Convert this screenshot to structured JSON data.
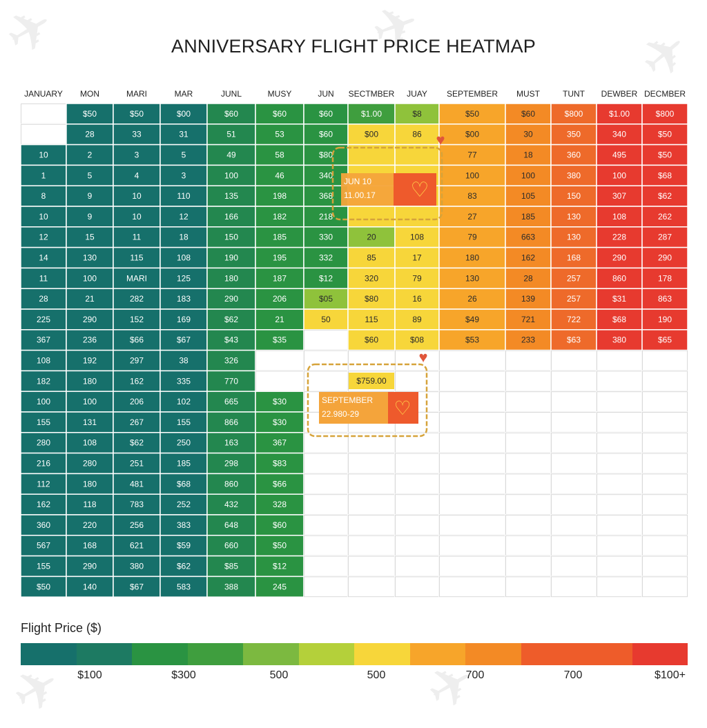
{
  "page": {
    "title": "ANNIVERSARY FLIGHT PRICE HEATMAP",
    "background_icon": "airplane-icon"
  },
  "chart_data": {
    "type": "heatmap",
    "title": "ANNIVERSARY FLIGHT PRICE HEATMAP",
    "columns": [
      "JANUARY",
      "MON",
      "MARI",
      "MAR",
      "JUNL",
      "MUSY",
      "JUN",
      "SECTMBER",
      "JUAY",
      "SEPTEMBER",
      "MUST",
      "TUNT",
      "DEWBER",
      "DECMBER"
    ],
    "rows": [
      [
        "",
        "$50",
        "$50",
        "$00",
        "$60",
        "$60",
        "$60",
        "$1.00",
        "$8",
        "$50",
        "$60",
        "$800",
        "$1.00",
        "$800"
      ],
      [
        "",
        "28",
        "33",
        "31",
        "51",
        "53",
        "$60",
        "$00",
        "86",
        "$00",
        "30",
        "350",
        "340",
        "$50"
      ],
      [
        "10",
        "2",
        "3",
        "5",
        "49",
        "58",
        "$80",
        "",
        "",
        "77",
        "18",
        "360",
        "495",
        "$50"
      ],
      [
        "1",
        "5",
        "4",
        "3",
        "100",
        "46",
        "340",
        "",
        "",
        "100",
        "100",
        "380",
        "100",
        "$68"
      ],
      [
        "8",
        "9",
        "10",
        "110",
        "135",
        "198",
        "368",
        "",
        "",
        "83",
        "105",
        "150",
        "307",
        "$62"
      ],
      [
        "10",
        "9",
        "10",
        "12",
        "166",
        "182",
        "218",
        "",
        "",
        "27",
        "185",
        "130",
        "108",
        "262"
      ],
      [
        "12",
        "15",
        "11",
        "18",
        "150",
        "185",
        "330",
        "20",
        "108",
        "79",
        "663",
        "130",
        "228",
        "287"
      ],
      [
        "14",
        "130",
        "115",
        "108",
        "190",
        "195",
        "332",
        "85",
        "17",
        "180",
        "162",
        "168",
        "290",
        "290"
      ],
      [
        "11",
        "100",
        "MARI",
        "125",
        "180",
        "187",
        "$12",
        "320",
        "79",
        "130",
        "28",
        "257",
        "860",
        "178"
      ],
      [
        "28",
        "21",
        "282",
        "183",
        "290",
        "206",
        "$05",
        "$80",
        "16",
        "26",
        "139",
        "257",
        "$31",
        "863"
      ],
      [
        "225",
        "290",
        "152",
        "169",
        "$62",
        "21",
        "50",
        "115",
        "89",
        "$49",
        "721",
        "722",
        "$68",
        "190"
      ],
      [
        "367",
        "236",
        "$66",
        "$67",
        "$43",
        "$35",
        "",
        "$60",
        "$08",
        "$53",
        "233",
        "$63",
        "380",
        "$65"
      ],
      [
        "108",
        "192",
        "297",
        "38",
        "326",
        "",
        "",
        "",
        "",
        "",
        "",
        "",
        "",
        ""
      ],
      [
        "182",
        "180",
        "162",
        "335",
        "770",
        "",
        "",
        "",
        "",
        "",
        "",
        "",
        "",
        ""
      ],
      [
        "100",
        "100",
        "206",
        "102",
        "665",
        "$30",
        "",
        "",
        "",
        "",
        "",
        "",
        "",
        ""
      ],
      [
        "155",
        "131",
        "267",
        "155",
        "866",
        "$30",
        "",
        "",
        "",
        "",
        "",
        "",
        "",
        ""
      ],
      [
        "280",
        "108",
        "$62",
        "250",
        "163",
        "367",
        "",
        "",
        "",
        "",
        "",
        "",
        "",
        ""
      ],
      [
        "216",
        "280",
        "251",
        "185",
        "298",
        "$83",
        "",
        "",
        "",
        "",
        "",
        "",
        "",
        ""
      ],
      [
        "112",
        "180",
        "481",
        "$68",
        "860",
        "$66",
        "",
        "",
        "",
        "",
        "",
        "",
        "",
        ""
      ],
      [
        "162",
        "118",
        "783",
        "252",
        "432",
        "328",
        "",
        "",
        "",
        "",
        "",
        "",
        "",
        ""
      ],
      [
        "360",
        "220",
        "256",
        "383",
        "648",
        "$60",
        "",
        "",
        "",
        "",
        "",
        "",
        "",
        ""
      ],
      [
        "567",
        "168",
        "621",
        "$59",
        "660",
        "$50",
        "",
        "",
        "",
        "",
        "",
        "",
        "",
        ""
      ],
      [
        "155",
        "290",
        "380",
        "$62",
        "$85",
        "$12",
        "",
        "",
        "",
        "",
        "",
        "",
        "",
        ""
      ],
      [
        "$50",
        "140",
        "$67",
        "583",
        "388",
        "245",
        "",
        "",
        "",
        "",
        "",
        "",
        "",
        ""
      ]
    ],
    "cell_colors": [
      [
        "#ffffff",
        "#16706b",
        "#16706b",
        "#16706b",
        "#23874f",
        "#2a9342",
        "#2a9342",
        "#3f9e3e",
        "#8fc23b",
        "#f7a52a",
        "#f38a25",
        "#ee6a2a",
        "#e73a2f",
        "#e73a2f"
      ],
      [
        "#ffffff",
        "#16706b",
        "#16706b",
        "#16706b",
        "#23874f",
        "#2a9342",
        "#2a9342",
        "#f7d63a",
        "#f7d63a",
        "#f7a52a",
        "#f38a25",
        "#ee6a2a",
        "#e73a2f",
        "#e73a2f"
      ],
      [
        "#16706b",
        "#16706b",
        "#16706b",
        "#16706b",
        "#23874f",
        "#2a9342",
        "#2a9342",
        "#f7d63a",
        "#f7d63a",
        "#f7a52a",
        "#f38a25",
        "#ee6a2a",
        "#e73a2f",
        "#e73a2f"
      ],
      [
        "#16706b",
        "#16706b",
        "#16706b",
        "#16706b",
        "#23874f",
        "#2a9342",
        "#2a9342",
        "#f7d63a",
        "#f7d63a",
        "#f7a52a",
        "#f38a25",
        "#ee6a2a",
        "#e73a2f",
        "#e73a2f"
      ],
      [
        "#16706b",
        "#16706b",
        "#16706b",
        "#16706b",
        "#23874f",
        "#2a9342",
        "#2a9342",
        "#f7d63a",
        "#f7d63a",
        "#f7a52a",
        "#f38a25",
        "#ee6a2a",
        "#e73a2f",
        "#e73a2f"
      ],
      [
        "#16706b",
        "#16706b",
        "#16706b",
        "#16706b",
        "#23874f",
        "#2a9342",
        "#2a9342",
        "#f7d63a",
        "#f7d63a",
        "#f7a52a",
        "#f38a25",
        "#ee6a2a",
        "#e73a2f",
        "#e73a2f"
      ],
      [
        "#16706b",
        "#16706b",
        "#16706b",
        "#16706b",
        "#23874f",
        "#2a9342",
        "#2a9342",
        "#8fc23b",
        "#f7d63a",
        "#f7a52a",
        "#f38a25",
        "#ee6a2a",
        "#e73a2f",
        "#e73a2f"
      ],
      [
        "#16706b",
        "#16706b",
        "#16706b",
        "#16706b",
        "#23874f",
        "#2a9342",
        "#2a9342",
        "#f7d63a",
        "#f7d63a",
        "#f7a52a",
        "#f38a25",
        "#ee6a2a",
        "#e73a2f",
        "#e73a2f"
      ],
      [
        "#16706b",
        "#16706b",
        "#16706b",
        "#16706b",
        "#23874f",
        "#2a9342",
        "#2a9342",
        "#f7d63a",
        "#f7d63a",
        "#f7a52a",
        "#f38a25",
        "#ee6a2a",
        "#e73a2f",
        "#e73a2f"
      ],
      [
        "#16706b",
        "#16706b",
        "#16706b",
        "#16706b",
        "#23874f",
        "#2a9342",
        "#8fc23b",
        "#f7d63a",
        "#f7d63a",
        "#f7a52a",
        "#f38a25",
        "#ee6a2a",
        "#e73a2f",
        "#e73a2f"
      ],
      [
        "#16706b",
        "#16706b",
        "#16706b",
        "#16706b",
        "#23874f",
        "#2a9342",
        "#f7d63a",
        "#f7d63a",
        "#f7d63a",
        "#f7a52a",
        "#f38a25",
        "#ee6a2a",
        "#e73a2f",
        "#e73a2f"
      ],
      [
        "#16706b",
        "#16706b",
        "#16706b",
        "#16706b",
        "#23874f",
        "#2a9342",
        "#ffffff",
        "#f7d63a",
        "#f7d63a",
        "#f7a52a",
        "#f38a25",
        "#ee6a2a",
        "#e73a2f",
        "#e73a2f"
      ],
      [
        "#16706b",
        "#16706b",
        "#16706b",
        "#16706b",
        "#23874f",
        "#ffffff",
        "#ffffff",
        "#ffffff",
        "#ffffff",
        "#ffffff",
        "#ffffff",
        "#ffffff",
        "#ffffff",
        "#ffffff"
      ],
      [
        "#16706b",
        "#16706b",
        "#16706b",
        "#16706b",
        "#23874f",
        "#ffffff",
        "#ffffff",
        "#ffffff",
        "#ffffff",
        "#ffffff",
        "#ffffff",
        "#ffffff",
        "#ffffff",
        "#ffffff"
      ],
      [
        "#16706b",
        "#16706b",
        "#16706b",
        "#16706b",
        "#23874f",
        "#2a9342",
        "#ffffff",
        "#ffffff",
        "#ffffff",
        "#ffffff",
        "#ffffff",
        "#ffffff",
        "#ffffff",
        "#ffffff"
      ],
      [
        "#16706b",
        "#16706b",
        "#16706b",
        "#16706b",
        "#23874f",
        "#2a9342",
        "#ffffff",
        "#ffffff",
        "#ffffff",
        "#ffffff",
        "#ffffff",
        "#ffffff",
        "#ffffff",
        "#ffffff"
      ],
      [
        "#16706b",
        "#16706b",
        "#16706b",
        "#16706b",
        "#23874f",
        "#2a9342",
        "#ffffff",
        "#ffffff",
        "#ffffff",
        "#ffffff",
        "#ffffff",
        "#ffffff",
        "#ffffff",
        "#ffffff"
      ],
      [
        "#16706b",
        "#16706b",
        "#16706b",
        "#16706b",
        "#23874f",
        "#2a9342",
        "#ffffff",
        "#ffffff",
        "#ffffff",
        "#ffffff",
        "#ffffff",
        "#ffffff",
        "#ffffff",
        "#ffffff"
      ],
      [
        "#16706b",
        "#16706b",
        "#16706b",
        "#16706b",
        "#23874f",
        "#2a9342",
        "#ffffff",
        "#ffffff",
        "#ffffff",
        "#ffffff",
        "#ffffff",
        "#ffffff",
        "#ffffff",
        "#ffffff"
      ],
      [
        "#16706b",
        "#16706b",
        "#16706b",
        "#16706b",
        "#23874f",
        "#2a9342",
        "#ffffff",
        "#ffffff",
        "#ffffff",
        "#ffffff",
        "#ffffff",
        "#ffffff",
        "#ffffff",
        "#ffffff"
      ],
      [
        "#16706b",
        "#16706b",
        "#16706b",
        "#16706b",
        "#23874f",
        "#2a9342",
        "#ffffff",
        "#ffffff",
        "#ffffff",
        "#ffffff",
        "#ffffff",
        "#ffffff",
        "#ffffff",
        "#ffffff"
      ],
      [
        "#16706b",
        "#16706b",
        "#16706b",
        "#16706b",
        "#23874f",
        "#2a9342",
        "#ffffff",
        "#ffffff",
        "#ffffff",
        "#ffffff",
        "#ffffff",
        "#ffffff",
        "#ffffff",
        "#ffffff"
      ],
      [
        "#16706b",
        "#16706b",
        "#16706b",
        "#16706b",
        "#23874f",
        "#2a9342",
        "#ffffff",
        "#ffffff",
        "#ffffff",
        "#ffffff",
        "#ffffff",
        "#ffffff",
        "#ffffff",
        "#ffffff"
      ],
      [
        "#16706b",
        "#16706b",
        "#16706b",
        "#16706b",
        "#23874f",
        "#2a9342",
        "#ffffff",
        "#ffffff",
        "#ffffff",
        "#ffffff",
        "#ffffff",
        "#ffffff",
        "#ffffff",
        "#ffffff"
      ]
    ],
    "annotations": [
      {
        "date": "JUN 10",
        "value": "11.00.17",
        "icon": "heart-icon"
      },
      {
        "price": "$759.00",
        "label": "SEPTEMBER",
        "value": "22.980-29",
        "icon": "heart-icon"
      }
    ],
    "legend": {
      "title": "Flight Price ($)",
      "tick_labels": [
        "$100",
        "$300",
        "500",
        "500",
        "700",
        "700",
        "$100+"
      ],
      "colors": [
        "#16706b",
        "#1d7a62",
        "#2a9342",
        "#3f9e3e",
        "#7cb940",
        "#b4d03a",
        "#f7d63a",
        "#f7a52a",
        "#f38a25",
        "#ee5c2a",
        "#ee5c2a",
        "#e73a2f"
      ]
    },
    "grid": true
  }
}
